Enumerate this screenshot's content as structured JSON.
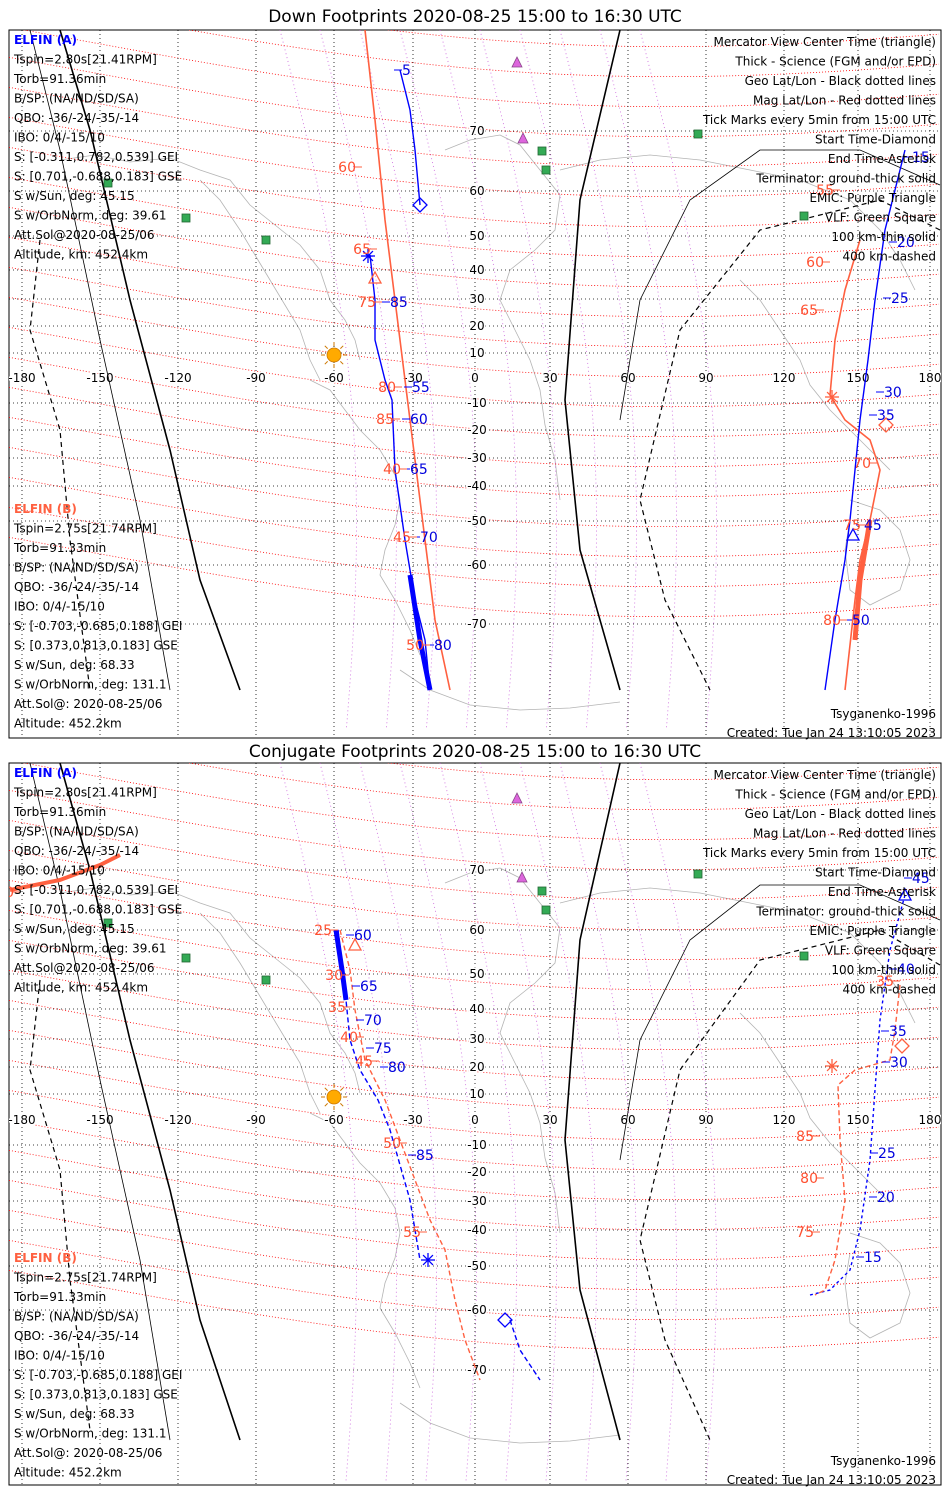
{
  "colors": {
    "elfin_a": "#0000ff",
    "elfin_b": "#ff6040",
    "geo_grid": "#000000",
    "mag_grid": "#ff0000",
    "coast": "#b4b4b4",
    "terminator": "#000000",
    "event_marker": "#dd66dd",
    "vlf_marker": "#33aa55",
    "sun": "#ffaa00"
  },
  "icons": {
    "sun": "sun-icon",
    "event_marker": "triangle-icon",
    "vlf_marker": "square-icon",
    "start": "diamond-icon",
    "end": "asterisk-icon",
    "center": "triangle-icon"
  },
  "panels": [
    {
      "title": "Down Footprints 2020-08-25 15:00 to 16:30 UTC",
      "info_a": [
        "ELFIN (A)",
        "Tspin=2.80s[21.41RPM]",
        "Torb=91.36min",
        "B/SP: (NA/ND/SD/SA)",
        "QBO: -36/-24/-35/-14",
        "IBO: 0/4/-15/10",
        "S: [-0.311,0.782,0.539] GEI",
        "S: [0.701,-0.688,0.183] GSE",
        "S w/Sun, deg: 45.15",
        "S w/OrbNorm, deg: 39.61",
        "Att.Sol@2020-08-25/06",
        "Altitude, km: 452.4km"
      ],
      "info_b": [
        "ELFIN (B)",
        "Tspin=2.75s[21.74RPM]",
        "Torb=91.33min",
        "B/SP: (NA/ND/SD/SA)",
        "QBO: -36/-24/-35/-14",
        "IBO: 0/4/-15/10",
        "S: [-0.703,-0.685,0.188] GEI",
        "S: [0.373,0.813,0.183] GSE",
        "S w/Sun, deg: 68.33",
        "S w/OrbNorm, deg: 131.1",
        "Att.Sol@: 2020-08-25/06",
        "Altitude: 452.2km"
      ],
      "legend": [
        "Mercator View Center Time (triangle)",
        "Thick - Science (FGM and/or EPD)",
        "Geo Lat/Lon - Black dotted lines",
        "Mag Lat/Lon - Red dotted lines",
        "Tick Marks every 5min from 15:00 UTC",
        "Start Time-Diamond",
        "End Time-Asterisk",
        "Terminator: ground-thick solid",
        "EMIC: Purple Triangle",
        "VLF: Green Square",
        "100 km-thin solid",
        "400 km-dashed"
      ],
      "model": "Tsyganenko-1996",
      "created": "Created: Tue Jan 24 13:10:05 2023",
      "ticks_a": [
        "5",
        "15",
        "20",
        "25",
        "30",
        "35",
        "45",
        "50",
        "55",
        "60",
        "65",
        "70",
        "80",
        "85"
      ],
      "ticks_b": [
        "60",
        "65",
        "75",
        "80",
        "85",
        "40",
        "45",
        "50",
        "55",
        "60",
        "65",
        "70",
        "75",
        "80"
      ]
    },
    {
      "title": "Conjugate Footprints 2020-08-25 15:00 to 16:30 UTC",
      "info_a": [
        "ELFIN (A)",
        "Tspin=2.80s[21.41RPM]",
        "Torb=91.36min",
        "B/SP: (NA/ND/SD/SA)",
        "QBO: -36/-24/-35/-14",
        "IBO: 0/4/-15/10",
        "S: [-0.311,0.782,0.539] GEI",
        "S: [0.701,-0.688,0.183] GSE",
        "S w/Sun, deg: 45.15",
        "S w/OrbNorm, deg: 39.61",
        "Att.Sol@2020-08-25/06",
        "Altitude, km: 452.4km"
      ],
      "info_b": [
        "ELFIN (B)",
        "Tspin=2.75s[21.74RPM]",
        "Torb=91.33min",
        "B/SP: (NA/ND/SD/SA)",
        "QBO: -36/-24/-35/-14",
        "IBO: 0/4/-15/10",
        "S: [-0.703,-0.685,0.188] GEI",
        "S: [0.373,0.813,0.183] GSE",
        "S w/Sun, deg: 68.33",
        "S w/OrbNorm, deg: 131.1",
        "Att.Sol@: 2020-08-25/06",
        "Altitude: 452.2km"
      ],
      "legend": [
        "Mercator View Center Time (triangle)",
        "Thick - Science (FGM and/or EPD)",
        "Geo Lat/Lon - Black dotted lines",
        "Mag Lat/Lon - Red dotted lines",
        "Tick Marks every 5min from 15:00 UTC",
        "Start Time-Diamond",
        "End Time-Asterisk",
        "Terminator: ground-thick solid",
        "EMIC: Purple Triangle",
        "VLF: Green Square",
        "100 km-thin solid",
        "400 km-dashed"
      ],
      "model": "Tsyganenko-1996",
      "created": "Created: Tue Jan 24 13:10:05 2023",
      "ticks_a": [
        "60",
        "65",
        "70",
        "75",
        "80",
        "85",
        "45",
        "40",
        "35",
        "30",
        "25",
        "20",
        "15"
      ],
      "ticks_b": [
        "10",
        "25",
        "30",
        "35",
        "40",
        "45",
        "50",
        "55",
        "85",
        "80",
        "75",
        "35"
      ]
    }
  ],
  "axes": {
    "lon_labels": [
      "-180",
      "-150",
      "-120",
      "-90",
      "-60",
      "-30",
      "0",
      "30",
      "60",
      "90",
      "120",
      "150",
      "180"
    ],
    "lat_labels": [
      "70",
      "60",
      "50",
      "40",
      "30",
      "20",
      "10",
      "-10",
      "-20",
      "-30",
      "-40",
      "-50",
      "-60",
      "-70"
    ]
  }
}
